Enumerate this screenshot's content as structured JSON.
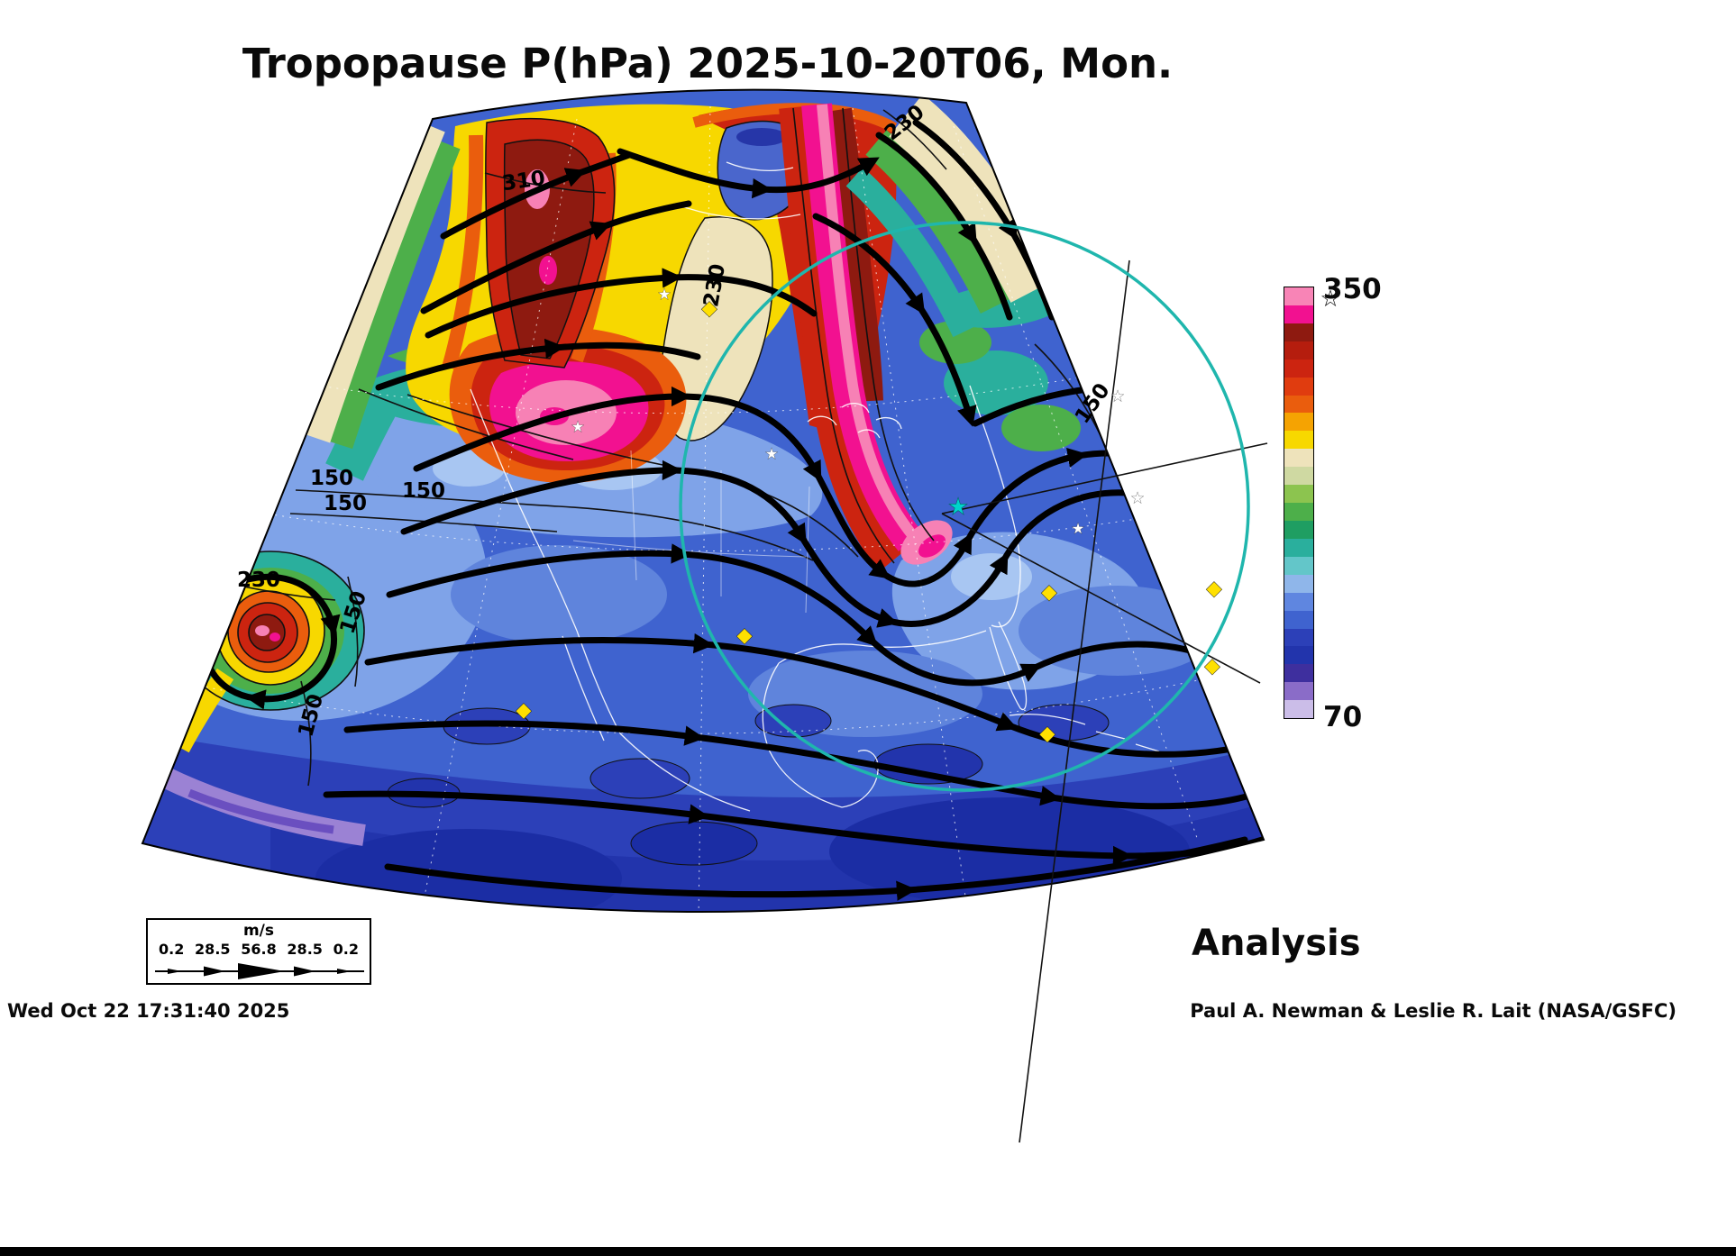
{
  "title": "Tropopause P(hPa) 2025-10-20T06, Mon.",
  "analysis_label": "Analysis",
  "footer": {
    "generated": "Wed Oct 22 17:31:40 2025",
    "credit": "Paul A. Newman & Leslie R. Lait (NASA/GSFC)"
  },
  "colorbar": {
    "max_label": "350",
    "min_label": "70",
    "colors_top_to_bottom": [
      "#f884b6",
      "#f21190",
      "#8e1a10",
      "#b51d0e",
      "#cc2410",
      "#e03c0f",
      "#ea5d0d",
      "#f5a302",
      "#f7d800",
      "#eee3bb",
      "#cfd9a2",
      "#8cc44f",
      "#4daf4a",
      "#1f9e62",
      "#2aaf9d",
      "#63c6c9",
      "#8fb6ea",
      "#5f86e0",
      "#3f63cf",
      "#2c40b8",
      "#2234ac",
      "#3e2f9e",
      "#8a6cc8",
      "#cbbde8"
    ]
  },
  "wind_legend": {
    "units": "m/s",
    "values": [
      "0.2",
      "28.5",
      "56.8",
      "28.5",
      "0.2"
    ]
  },
  "contour_labels": [
    {
      "text": "310"
    },
    {
      "text": "230"
    },
    {
      "text": "230"
    },
    {
      "text": "150"
    },
    {
      "text": "150"
    },
    {
      "text": "150"
    },
    {
      "text": "230"
    },
    {
      "text": "150"
    },
    {
      "text": "150"
    },
    {
      "text": "150"
    }
  ],
  "map_markers": {
    "star_glyph": "★",
    "open_star_glyph": "☆",
    "diamond_glyph": "◆",
    "diamond_color": "#ffe000",
    "cyan_star_color": "#00d4cc",
    "circle_color": "#1fb6ad"
  },
  "chart_data": {
    "type": "heatmap",
    "title": "Tropopause P(hPa) 2025-10-20T06, Mon.",
    "field": "Tropopause pressure shown as filled contours on a polar map projection over North America, with jet-stream wind streamlines drawn as thick black arrowed curves",
    "units": "hPa",
    "colorbar_range": [
      70,
      350
    ],
    "colorbar_tick_labels": [
      "350",
      "70"
    ],
    "contour_labels_visible": [
      310,
      230,
      230,
      150,
      150,
      150,
      230,
      150,
      150,
      150
    ],
    "wind_scale_values_ms": [
      0.2,
      28.5,
      56.8,
      28.5,
      0.2
    ],
    "product": "Analysis",
    "valid_time": "2025-10-20T06",
    "valid_day": "Mon",
    "generated": "Wed Oct 22 17:31:40 2025",
    "authors": "Paul A. Newman & Leslie R. Lait (NASA/GSFC)"
  }
}
